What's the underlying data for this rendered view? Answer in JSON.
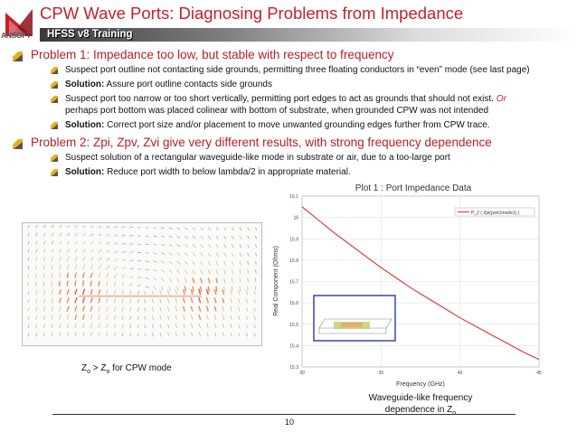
{
  "header": {
    "logo_text": "ANSOFT",
    "title": "CPW Wave Ports:  Diagnosing Problems from Impedance",
    "banner": "HFSS v8 Training"
  },
  "colors": {
    "title": "#c81e28",
    "bullet": "#e8b020",
    "curve": "#e03030"
  },
  "problem1": {
    "heading": "Problem 1: Impedance too low, but stable with respect to frequency",
    "item1": "Suspect port outline not contacting side grounds, permitting three floating conductors in “even” mode (see last page)",
    "item2_label": "Solution:",
    "item2_text": "  Assure port outline contacts side grounds",
    "item3_text": "Suspect port too narrow or too short vertically, permitting port edges to act as grounds that should not exist.  ",
    "item3_or": "Or",
    "item3_cont": "perhaps port bottom was placed colinear with bottom of substrate, when grounded CPW was not intended",
    "item4_label": "Solution:",
    "item4_text": " Correct port size and/or placement to move unwanted grounding edges further from CPW trace."
  },
  "problem2": {
    "heading": "Problem 2:  Zpi, Zpv, Zvi give very different results, with strong frequency dependence",
    "item1": "Suspect solution of a rectangular waveguide-like mode in substrate or air, due to a too-large port",
    "item2_label": "Solution:",
    "item2_text": "  Reduce port width to below lambda/2 in appropriate material."
  },
  "field_caption": {
    "z1": "Z",
    "sub1": "o",
    "mid": " > Z",
    "sub2": "o",
    "end": " for CPW mode"
  },
  "chart_data": {
    "type": "line",
    "title": "Plot 1 : Port Impedance Data",
    "xlabel": "Frequency (GHz)",
    "ylabel": "Real Component (Ohms)",
    "xlim": [
      30,
      45
    ],
    "ylim": [
      15.3,
      16.1
    ],
    "x_ticks": [
      "30",
      "35",
      "40",
      "45"
    ],
    "y_ticks": [
      "16.1",
      "16",
      "15.9",
      "15.8",
      "15.7",
      "15.6",
      "15.5",
      "15.4",
      "15.3"
    ],
    "series": [
      {
        "name": "P_2 ( Zpi(port1mode1) )",
        "x": [
          30,
          31,
          32,
          33,
          34,
          35,
          36,
          37,
          38,
          39,
          40,
          41,
          42,
          43,
          44,
          45
        ],
        "y": [
          16.05,
          15.99,
          15.93,
          15.875,
          15.82,
          15.765,
          15.715,
          15.665,
          15.62,
          15.575,
          15.53,
          15.49,
          15.45,
          15.41,
          15.37,
          15.335
        ]
      }
    ],
    "grid": true,
    "legend": "top-right"
  },
  "plot_caption": {
    "line1": "Waveguide-like frequency",
    "line2a": "dependence in Z",
    "line2sub": "o"
  },
  "footer": {
    "page": "10"
  }
}
